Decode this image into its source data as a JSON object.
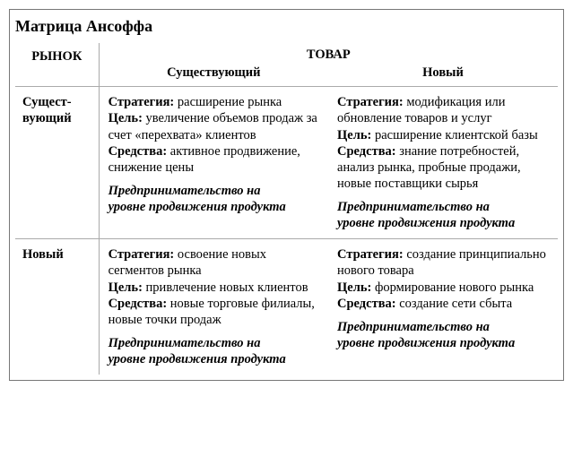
{
  "title": "Матрица Ансоффа",
  "headers": {
    "market": "РЫНОК",
    "product": "ТОВАР",
    "product_existing": "Существующий",
    "product_new": "Новый"
  },
  "rows": {
    "existing": {
      "label_l1": "Сущест-",
      "label_l2": "вующий"
    },
    "new": {
      "label": "Новый"
    }
  },
  "labels": {
    "strategy": "Стратегия:",
    "goal": "Цель:",
    "means": "Средства:"
  },
  "cells": {
    "ee": {
      "strategy": "расширение рынка",
      "goal": "увеличение объемов продаж за счет «перехвата» клиентов",
      "means": "активное продви­жение, снижение цены",
      "summary_l1": "Предпринимательство на",
      "summary_l2": "уровне продвижения продукта"
    },
    "en": {
      "strategy": "модификация или обновление товаров и услуг",
      "goal": "расширение клиентской базы",
      "means": "знание потребностей, анализ рынка, пробные продажи, новые поставщики сырья",
      "summary_l1": "Предпринимательство на",
      "summary_l2": "уровне продвижения продукта"
    },
    "ne": {
      "strategy": "освоение новых сегментов рынка",
      "goal": "привлечение новых клиентов",
      "means": "новые торговые филиалы, новые точки продаж",
      "summary_l1": "Предпринимательство на",
      "summary_l2": "уровне продвижения продукта"
    },
    "nn": {
      "strategy": "создание принци­пиально нового товара",
      "goal": "формирование нового рынка",
      "means": "создание сети сбыта",
      "summary_l1": "Предпринимательство на",
      "summary_l2": "уровне продвижения продукта"
    }
  }
}
